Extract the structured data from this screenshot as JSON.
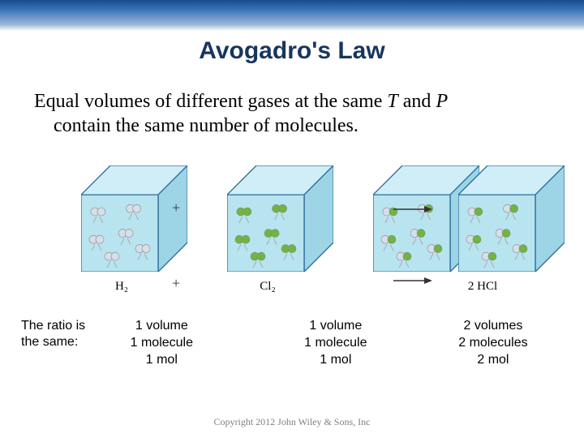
{
  "title": "Avogadro's Law",
  "statement_line1": "Equal volumes of different gases at the same ",
  "statement_T": "T",
  "statement_mid": " and ",
  "statement_P": "P",
  "statement_line2": "contain the same number of molecules.",
  "equation": {
    "h2": "H₂",
    "plus": "+",
    "cl2": "Cl₂",
    "result": "2 HCl"
  },
  "cubes": {
    "face_color": "#b8e4f0",
    "edge_color": "#2a6a9c",
    "side_color": "#9dd4e6",
    "top_color": "#d0eef7",
    "size": 95,
    "positions": [
      60,
      240,
      420,
      525
    ],
    "molecules": {
      "h2": {
        "a_color": "#d8dee8",
        "b_color": "#d8dee8"
      },
      "cl2": {
        "a_color": "#6fb53f",
        "b_color": "#6fb53f"
      },
      "hcl": {
        "a_color": "#d8dee8",
        "b_color": "#6fb53f"
      }
    }
  },
  "ratio_label": "The ratio is\nthe same:",
  "ratios": [
    {
      "v": "1 volume",
      "m": "1 molecule",
      "mol": "1 mol"
    },
    {
      "v": "1 volume",
      "m": "1 molecule",
      "mol": "1 mol"
    },
    {
      "v": "2 volumes",
      "m": "2 molecules",
      "mol": "2 mol"
    }
  ],
  "copyright": "Copyright 2012 John Wiley & Sons, Inc"
}
